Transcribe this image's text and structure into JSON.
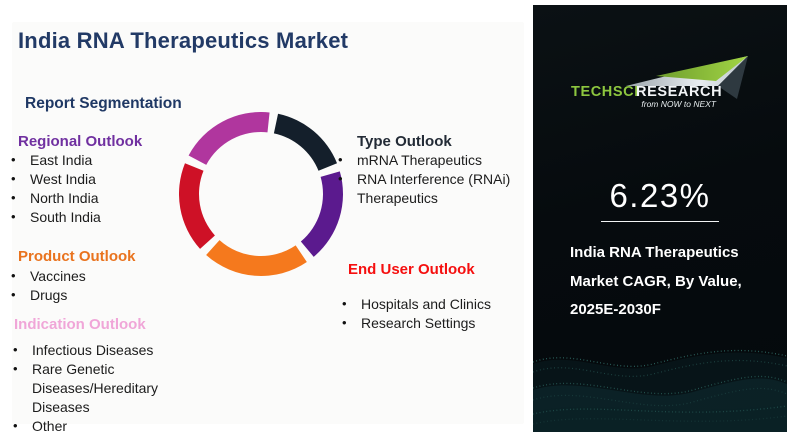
{
  "page": {
    "title": "India RNA Therapeutics Market",
    "section_header": "Report Segmentation"
  },
  "left_sections": {
    "regional": {
      "label": "Regional Outlook",
      "items": [
        "East India",
        "West India",
        "North India",
        "South India"
      ]
    },
    "product": {
      "label": "Product Outlook",
      "items": [
        "Vaccines",
        "Drugs"
      ]
    },
    "indication": {
      "label": "Indication Outlook",
      "items": [
        "Infectious Diseases",
        "Rare Genetic Diseases/Hereditary Diseases",
        "Other"
      ]
    }
  },
  "right_sections": {
    "type": {
      "label": "Type Outlook",
      "items": [
        "mRNA Therapeutics",
        "RNA Interference (RNAi) Therapeutics"
      ]
    },
    "end_user": {
      "label": "End User Outlook",
      "items": [
        "Hospitals and Clinics",
        "Research Settings"
      ]
    }
  },
  "panel": {
    "logo": {
      "brand_primary": "TECHSCI",
      "brand_secondary": "RESEARCH",
      "tagline": "from NOW to NEXT"
    },
    "cagr_value": "6.23%",
    "caption_lines": [
      "India RNA Therapeutics",
      "Market CAGR, By Value,",
      "2025E-2030F"
    ]
  },
  "colors": {
    "title_navy": "#223a66",
    "report_heading_navy": "#1f3864",
    "regional_purple": "#7030a0",
    "product_orange": "#e9731e",
    "indication_pink": "#f0a6d8",
    "end_user_red": "#f50f0f",
    "type_charcoal": "#232b36",
    "logo_green": "#8dc63f",
    "panel_bg": "#070c0f",
    "wave_teal": "#2e6b66"
  },
  "chart_data": {
    "type": "donut",
    "title": "",
    "labels_visible": false,
    "legend": "none",
    "inner_radius_ratio": 0.76,
    "segments": [
      {
        "name": "dark-navy",
        "color": "#141f2b",
        "start_deg": 12,
        "end_deg": 68,
        "approx_share_pct": 17
      },
      {
        "name": "purple",
        "color": "#5b1a8e",
        "start_deg": 74,
        "end_deg": 140,
        "approx_share_pct": 20
      },
      {
        "name": "orange",
        "color": "#f5791d",
        "start_deg": 146,
        "end_deg": 222,
        "approx_share_pct": 23
      },
      {
        "name": "red",
        "color": "#ce1126",
        "start_deg": 228,
        "end_deg": 292,
        "approx_share_pct": 19
      },
      {
        "name": "magenta",
        "color": "#b0369e",
        "start_deg": 298,
        "end_deg": 366,
        "approx_share_pct": 21
      }
    ]
  }
}
